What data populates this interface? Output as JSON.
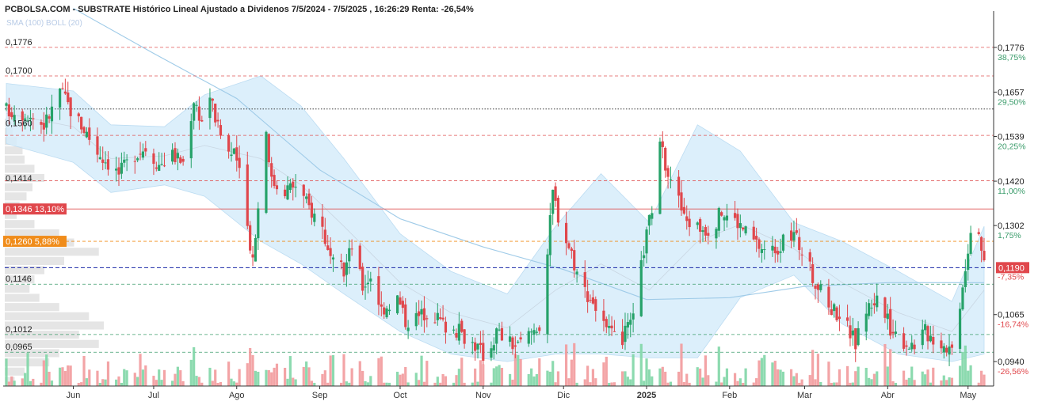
{
  "header": {
    "title": "PCBOLSA.COM - SUBSTRATE Histórico Lineal Ajustado a Dividenos 7/5/2024 - 7/5/2025 , 16:26:29 Renta: -26,54%",
    "indicators": "SMA (100) BOLL (20)"
  },
  "colors": {
    "up": "#26a269",
    "down": "#e0474c",
    "sma": "#9fcbe8",
    "band_fill": "#d6ecfa",
    "grid_red": "#e05555",
    "grid_green": "#3b9c6b",
    "current": "#1a27a8",
    "label_red": "#e0474c",
    "label_orange": "#f08c1a"
  },
  "chart_data": {
    "type": "candlestick",
    "x_range": [
      "2024-05-07",
      "2025-05-07"
    ],
    "y_range": [
      0.0875,
      0.186
    ],
    "months": [
      {
        "label": "Jun",
        "date": "2024-06-01"
      },
      {
        "label": "Jul",
        "date": "2024-07-01"
      },
      {
        "label": "Ago",
        "date": "2024-08-01"
      },
      {
        "label": "Sep",
        "date": "2024-09-01"
      },
      {
        "label": "Oct",
        "date": "2024-10-01"
      },
      {
        "label": "Nov",
        "date": "2024-11-01"
      },
      {
        "label": "Dic",
        "date": "2024-12-01"
      },
      {
        "label": "2025",
        "date": "2025-01-01",
        "bold": true
      },
      {
        "label": "Feb",
        "date": "2025-02-01"
      },
      {
        "label": "Mar",
        "date": "2025-03-01"
      },
      {
        "label": "Abr",
        "date": "2025-04-01"
      },
      {
        "label": "May",
        "date": "2025-05-01"
      }
    ],
    "right_levels": [
      {
        "value": 0.1776,
        "label": "0,1776",
        "pct": "38,75%",
        "pct_color": "green"
      },
      {
        "value": 0.1657,
        "label": "0,1657",
        "pct": "29,50%",
        "pct_color": "green"
      },
      {
        "value": 0.1539,
        "label": "0,1539",
        "pct": "20,25%",
        "pct_color": "green"
      },
      {
        "value": 0.142,
        "label": "0,1420",
        "pct": "11,00%",
        "pct_color": "green"
      },
      {
        "value": 0.1302,
        "label": "0,1302",
        "pct": "1,75%",
        "pct_color": "green"
      },
      {
        "value": 0.1065,
        "label": "0,1065",
        "pct": "-16,74%",
        "pct_color": "red"
      },
      {
        "value": 0.094,
        "label": "0,0940",
        "pct": "-26,56%",
        "pct_color": "red"
      }
    ],
    "left_levels": [
      {
        "value": 0.1776,
        "label": "0,1776"
      },
      {
        "value": 0.17,
        "label": "0,1700"
      },
      {
        "value": 0.156,
        "label": "0,1560"
      },
      {
        "value": 0.1414,
        "label": "0,1414"
      },
      {
        "value": 0.1146,
        "label": "0,1146"
      },
      {
        "value": 0.1012,
        "label": "0,1012"
      },
      {
        "value": 0.0965,
        "label": "0,0965"
      }
    ],
    "hlines": [
      {
        "value": 0.1776,
        "style": "red-dash"
      },
      {
        "value": 0.17,
        "style": "red-dash"
      },
      {
        "value": 0.1612,
        "style": "black-dot"
      },
      {
        "value": 0.1542,
        "style": "red-dash"
      },
      {
        "value": 0.1421,
        "style": "red-dash"
      },
      {
        "value": 0.1346,
        "style": "red-solid"
      },
      {
        "value": 0.126,
        "style": "orange-dash"
      },
      {
        "value": 0.119,
        "style": "blue-dash"
      },
      {
        "value": 0.1146,
        "style": "green-dash"
      },
      {
        "value": 0.1012,
        "style": "green-dash"
      },
      {
        "value": 0.0965,
        "style": "green-dash"
      }
    ],
    "badges": [
      {
        "value": 0.1346,
        "text": "0,1346  13,10%",
        "color": "red"
      },
      {
        "value": 0.126,
        "text": "0,1260  5,88%",
        "color": "orange"
      }
    ],
    "current_price": {
      "value": 0.119,
      "label": "0,1190",
      "pct": "-7,35%"
    },
    "close_path": [
      [
        "2024-05-07",
        0.161
      ],
      [
        "2024-05-15",
        0.16
      ],
      [
        "2024-05-21",
        0.157
      ],
      [
        "2024-05-24",
        0.161
      ],
      [
        "2024-05-27",
        0.1665
      ],
      [
        "2024-05-31",
        0.161
      ],
      [
        "2024-06-05",
        0.156
      ],
      [
        "2024-06-10",
        0.15
      ],
      [
        "2024-06-14",
        0.147
      ],
      [
        "2024-06-18",
        0.144
      ],
      [
        "2024-06-24",
        0.1495
      ],
      [
        "2024-06-28",
        0.151
      ],
      [
        "2024-07-03",
        0.1465
      ],
      [
        "2024-07-08",
        0.149
      ],
      [
        "2024-07-12",
        0.147
      ],
      [
        "2024-07-16",
        0.164
      ],
      [
        "2024-07-19",
        0.158
      ],
      [
        "2024-07-22",
        0.165
      ],
      [
        "2024-07-25",
        0.156
      ],
      [
        "2024-07-29",
        0.15
      ],
      [
        "2024-08-01",
        0.148
      ],
      [
        "2024-08-05",
        0.13
      ],
      [
        "2024-08-07",
        0.1215
      ],
      [
        "2024-08-09",
        0.135
      ],
      [
        "2024-08-12",
        0.156
      ],
      [
        "2024-08-14",
        0.142
      ],
      [
        "2024-08-19",
        0.14
      ],
      [
        "2024-08-23",
        0.141
      ],
      [
        "2024-08-28",
        0.135
      ],
      [
        "2024-09-02",
        0.13
      ],
      [
        "2024-09-05",
        0.12
      ],
      [
        "2024-09-10",
        0.118
      ],
      [
        "2024-09-13",
        0.125
      ],
      [
        "2024-09-17",
        0.114
      ],
      [
        "2024-09-20",
        0.117
      ],
      [
        "2024-09-24",
        0.108
      ],
      [
        "2024-09-30",
        0.111
      ],
      [
        "2024-10-03",
        0.105
      ],
      [
        "2024-10-08",
        0.106
      ],
      [
        "2024-10-12",
        0.108
      ],
      [
        "2024-10-17",
        0.104
      ],
      [
        "2024-10-23",
        0.102
      ],
      [
        "2024-10-29",
        0.0985
      ],
      [
        "2024-11-02",
        0.095
      ],
      [
        "2024-11-06",
        0.102
      ],
      [
        "2024-11-11",
        0.099
      ],
      [
        "2024-11-14",
        0.098
      ],
      [
        "2024-11-19",
        0.102
      ],
      [
        "2024-11-22",
        0.104
      ],
      [
        "2024-11-25",
        0.123
      ],
      [
        "2024-11-27",
        0.139
      ],
      [
        "2024-11-30",
        0.13
      ],
      [
        "2024-12-04",
        0.123
      ],
      [
        "2024-12-07",
        0.115
      ],
      [
        "2024-12-12",
        0.11
      ],
      [
        "2024-12-17",
        0.102
      ],
      [
        "2024-12-22",
        0.099
      ],
      [
        "2024-12-27",
        0.105
      ],
      [
        "2024-12-31",
        0.124
      ],
      [
        "2025-01-03",
        0.135
      ],
      [
        "2025-01-06",
        0.151
      ],
      [
        "2025-01-08",
        0.147
      ],
      [
        "2025-01-11",
        0.142
      ],
      [
        "2025-01-15",
        0.132
      ],
      [
        "2025-01-20",
        0.13
      ],
      [
        "2025-01-25",
        0.129
      ],
      [
        "2025-01-29",
        0.134
      ],
      [
        "2025-02-04",
        0.131
      ],
      [
        "2025-02-10",
        0.126
      ],
      [
        "2025-02-15",
        0.123
      ],
      [
        "2025-02-20",
        0.125
      ],
      [
        "2025-02-25",
        0.128
      ],
      [
        "2025-03-01",
        0.122
      ],
      [
        "2025-03-05",
        0.115
      ],
      [
        "2025-03-10",
        0.109
      ],
      [
        "2025-03-15",
        0.106
      ],
      [
        "2025-03-20",
        0.099
      ],
      [
        "2025-03-24",
        0.108
      ],
      [
        "2025-03-28",
        0.111
      ],
      [
        "2025-04-02",
        0.103
      ],
      [
        "2025-04-06",
        0.1
      ],
      [
        "2025-04-10",
        0.0985
      ],
      [
        "2025-04-15",
        0.102
      ],
      [
        "2025-04-20",
        0.0995
      ],
      [
        "2025-04-25",
        0.0975
      ],
      [
        "2025-04-28",
        0.11
      ],
      [
        "2025-04-30",
        0.12
      ],
      [
        "2025-05-02",
        0.129
      ],
      [
        "2025-05-05",
        0.13
      ],
      [
        "2025-05-07",
        0.119
      ]
    ],
    "sma_100": [
      [
        "2024-06-01",
        0.188
      ],
      [
        "2024-07-01",
        0.176
      ],
      [
        "2024-08-01",
        0.164
      ],
      [
        "2024-09-01",
        0.145
      ],
      [
        "2024-10-01",
        0.132
      ],
      [
        "2024-11-01",
        0.1245
      ],
      [
        "2024-12-01",
        0.1185
      ],
      [
        "2025-01-01",
        0.1105
      ],
      [
        "2025-02-01",
        0.111
      ],
      [
        "2025-03-01",
        0.114
      ],
      [
        "2025-04-01",
        0.115
      ],
      [
        "2025-05-07",
        0.115
      ]
    ],
    "boll_20": [
      [
        "2024-05-07",
        0.168,
        0.152
      ],
      [
        "2024-06-01",
        0.166,
        0.147
      ],
      [
        "2024-06-15",
        0.157,
        0.139
      ],
      [
        "2024-07-05",
        0.1565,
        0.141
      ],
      [
        "2024-07-20",
        0.165,
        0.138
      ],
      [
        "2024-08-10",
        0.17,
        0.126
      ],
      [
        "2024-08-25",
        0.162,
        0.12
      ],
      [
        "2024-09-10",
        0.148,
        0.112
      ],
      [
        "2024-10-01",
        0.128,
        0.102
      ],
      [
        "2024-10-20",
        0.118,
        0.096
      ],
      [
        "2024-11-10",
        0.112,
        0.094
      ],
      [
        "2024-11-28",
        0.13,
        0.096
      ],
      [
        "2024-12-15",
        0.144,
        0.096
      ],
      [
        "2025-01-02",
        0.131,
        0.095
      ],
      [
        "2025-01-20",
        0.157,
        0.095
      ],
      [
        "2025-02-05",
        0.15,
        0.111
      ],
      [
        "2025-02-25",
        0.131,
        0.117
      ],
      [
        "2025-03-15",
        0.126,
        0.104
      ],
      [
        "2025-04-05",
        0.118,
        0.096
      ],
      [
        "2025-04-25",
        0.11,
        0.094
      ],
      [
        "2025-05-07",
        0.13,
        0.096
      ]
    ],
    "volume_profile_left": [
      0.06,
      0.08,
      0.12,
      0.18,
      0.2,
      0.3,
      0.4,
      0.28,
      0.22,
      0.15,
      0.12,
      0.3,
      0.55,
      0.7,
      0.95,
      0.6,
      0.4,
      0.3,
      0.25,
      0.35,
      0.55,
      0.85,
      1.0,
      0.75,
      0.95,
      0.55,
      0.45,
      0.2,
      0.1
    ],
    "volume_scale_max": 1.0,
    "volume_bars_seed": 17
  }
}
